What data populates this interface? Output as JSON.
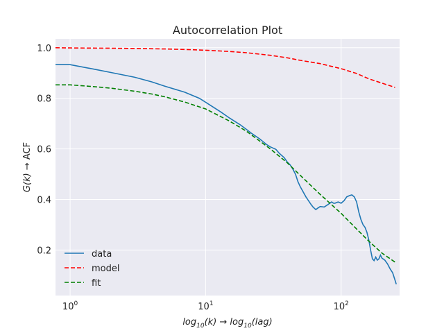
{
  "chart_data": {
    "type": "line",
    "title": "Autocorrelation Plot",
    "xlabel": {
      "prefix": "log",
      "sub1": "10",
      "arg1": "(k) → log",
      "sub2": "10",
      "arg2": "(lag)"
    },
    "ylabel": {
      "italic": "G(k)",
      "rest": " → ACF"
    },
    "xscale": "log",
    "xlim": [
      0.78,
      270
    ],
    "ylim": [
      0.02,
      1.035
    ],
    "xticks": [
      {
        "value": 1,
        "base": "10",
        "exp": "0"
      },
      {
        "value": 10,
        "base": "10",
        "exp": "1"
      },
      {
        "value": 100,
        "base": "10",
        "exp": "2"
      }
    ],
    "yticks": [
      {
        "value": 0.2,
        "label": "0.2"
      },
      {
        "value": 0.4,
        "label": "0.4"
      },
      {
        "value": 0.6,
        "label": "0.6"
      },
      {
        "value": 0.8,
        "label": "0.8"
      },
      {
        "value": 1.0,
        "label": "1.0"
      }
    ],
    "grid": true,
    "legend_position": "lower-left",
    "background": "#eaeaf2",
    "series": [
      {
        "name": "data",
        "color": "#1f77b4",
        "dash": "solid",
        "x": [
          0.78,
          1,
          1.5,
          2,
          3,
          4,
          5,
          7,
          9,
          11,
          13,
          15,
          18,
          20,
          22,
          25,
          28,
          30,
          33,
          35,
          38,
          40,
          42,
          44,
          46,
          48,
          50,
          55,
          60,
          62,
          65,
          67,
          70,
          75,
          80,
          85,
          88,
          90,
          95,
          100,
          105,
          110,
          115,
          120,
          125,
          130,
          135,
          140,
          145,
          150,
          155,
          160,
          165,
          170,
          175,
          180,
          185,
          190,
          195,
          200,
          210,
          220,
          230,
          240,
          250,
          255
        ],
        "y": [
          0.933,
          0.933,
          0.915,
          0.902,
          0.883,
          0.865,
          0.848,
          0.824,
          0.8,
          0.77,
          0.745,
          0.722,
          0.695,
          0.677,
          0.66,
          0.64,
          0.618,
          0.608,
          0.598,
          0.582,
          0.565,
          0.548,
          0.537,
          0.52,
          0.5,
          0.47,
          0.45,
          0.41,
          0.38,
          0.37,
          0.36,
          0.365,
          0.372,
          0.37,
          0.38,
          0.39,
          0.385,
          0.385,
          0.39,
          0.385,
          0.395,
          0.41,
          0.415,
          0.418,
          0.41,
          0.39,
          0.35,
          0.32,
          0.3,
          0.29,
          0.27,
          0.24,
          0.2,
          0.165,
          0.158,
          0.172,
          0.16,
          0.165,
          0.18,
          0.168,
          0.16,
          0.145,
          0.125,
          0.11,
          0.08,
          0.065
        ]
      },
      {
        "name": "model",
        "color": "#ff0000",
        "dash": "dashed",
        "x": [
          0.78,
          1,
          2,
          3,
          5,
          7,
          10,
          15,
          20,
          30,
          40,
          50,
          70,
          100,
          130,
          160,
          200,
          250
        ],
        "y": [
          1.0,
          0.999,
          0.998,
          0.997,
          0.995,
          0.993,
          0.99,
          0.985,
          0.98,
          0.97,
          0.96,
          0.95,
          0.937,
          0.917,
          0.898,
          0.877,
          0.86,
          0.843
        ]
      },
      {
        "name": "fit",
        "color": "#008000",
        "dash": "dashed",
        "x": [
          0.78,
          1,
          1.5,
          2,
          3,
          4,
          5,
          7,
          10,
          15,
          20,
          30,
          40,
          50,
          70,
          100,
          130,
          160,
          200,
          250
        ],
        "y": [
          0.853,
          0.853,
          0.846,
          0.84,
          0.828,
          0.817,
          0.806,
          0.785,
          0.758,
          0.71,
          0.67,
          0.6,
          0.545,
          0.495,
          0.42,
          0.345,
          0.283,
          0.235,
          0.188,
          0.152
        ]
      }
    ]
  }
}
